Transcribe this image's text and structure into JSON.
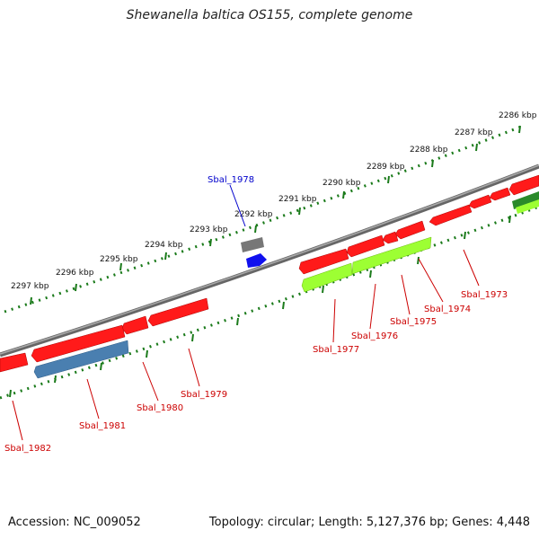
{
  "title": "Shewanella baltica OS155, complete genome",
  "footer": {
    "accession": "Accession: NC_009052",
    "summary": "Topology: circular; Length: 5,127,376 bp; Genes: 4,448"
  },
  "colors": {
    "backbone": "#8a8a8a",
    "tick": "#1a7a1a",
    "cds_red": "#ff1a1a",
    "cds_blue": "#4a7fb0",
    "cds_lime": "#9dff33",
    "cds_gray": "#777777",
    "cds_darkblue": "#1010ee",
    "cds_green": "#2a8a2a",
    "label_red": "#cc0000",
    "label_blue": "#0000cc"
  },
  "ticks": [
    "2286 kbp",
    "2287 kbp",
    "2288 kbp",
    "2289 kbp",
    "2290 kbp",
    "2291 kbp",
    "2292 kbp",
    "2293 kbp",
    "2294 kbp",
    "2295 kbp",
    "2296 kbp",
    "2297 kbp"
  ],
  "gene_labels": [
    "Sbal_1973",
    "Sbal_1974",
    "Sbal_1975",
    "Sbal_1976",
    "Sbal_1977",
    "Sbal_1978",
    "Sbal_1979",
    "Sbal_1980",
    "Sbal_1981",
    "Sbal_1982"
  ]
}
